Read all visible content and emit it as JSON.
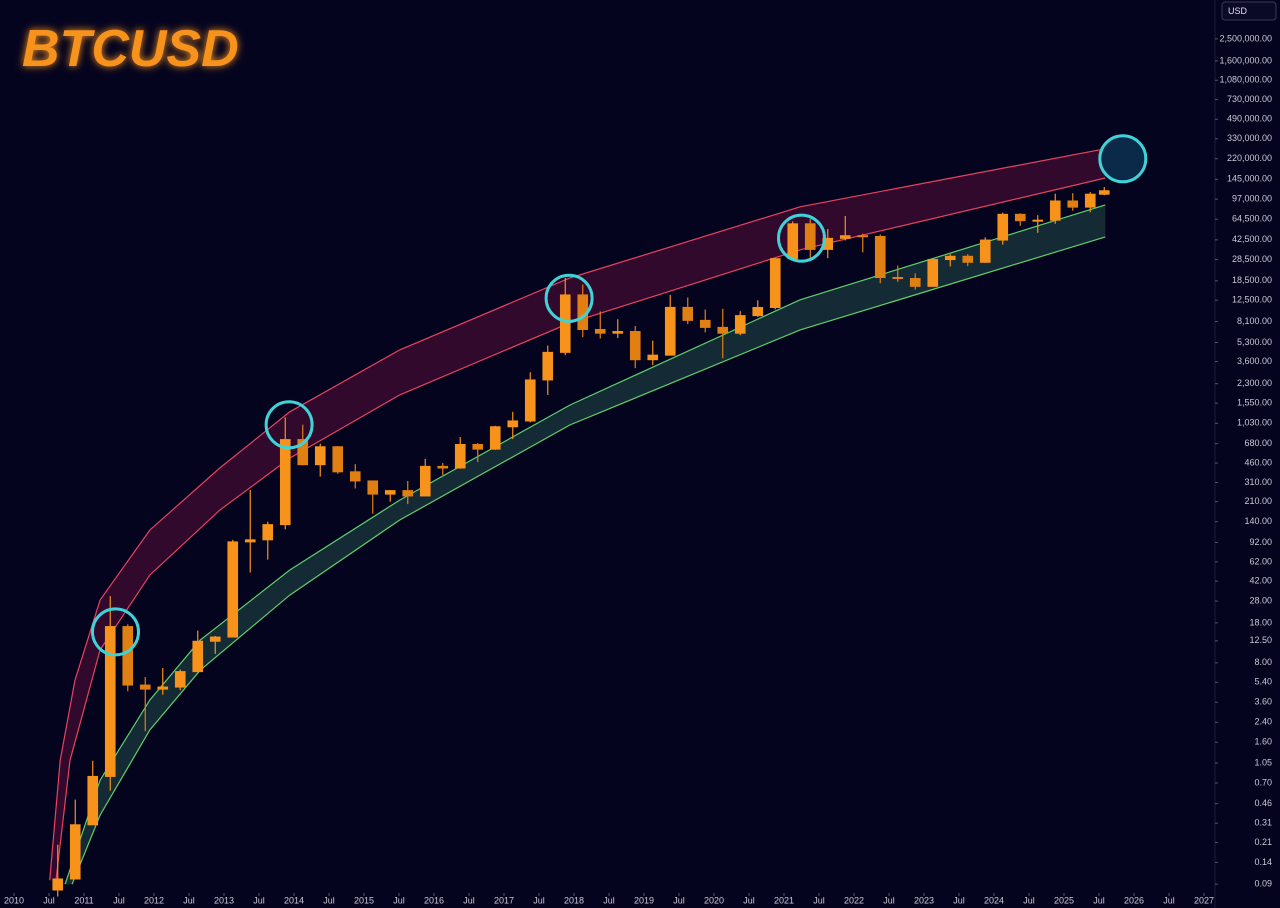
{
  "chart_data": {
    "type": "candlestick",
    "title": "BTCUSD",
    "currency": "USD",
    "log_scale": true,
    "up_color": "#f7931a",
    "down_color": "#e07f12",
    "xlim": [
      2009.8,
      2027.157
    ],
    "ylim": [
      0.068,
      5500000
    ],
    "xticks": [
      {
        "value": 2010,
        "label": "2010"
      },
      {
        "value": 2010.5,
        "label": "Jul"
      },
      {
        "value": 2011,
        "label": "2011"
      },
      {
        "value": 2011.5,
        "label": "Jul"
      },
      {
        "value": 2012,
        "label": "2012"
      },
      {
        "value": 2012.5,
        "label": "Jul"
      },
      {
        "value": 2013,
        "label": "2013"
      },
      {
        "value": 2013.5,
        "label": "Jul"
      },
      {
        "value": 2014,
        "label": "2014"
      },
      {
        "value": 2014.5,
        "label": "Jul"
      },
      {
        "value": 2015,
        "label": "2015"
      },
      {
        "value": 2015.5,
        "label": "Jul"
      },
      {
        "value": 2016,
        "label": "2016"
      },
      {
        "value": 2016.5,
        "label": "Jul"
      },
      {
        "value": 2017,
        "label": "2017"
      },
      {
        "value": 2017.5,
        "label": "Jul"
      },
      {
        "value": 2018,
        "label": "2018"
      },
      {
        "value": 2018.5,
        "label": "Jul"
      },
      {
        "value": 2019,
        "label": "2019"
      },
      {
        "value": 2019.5,
        "label": "Jul"
      },
      {
        "value": 2020,
        "label": "2020"
      },
      {
        "value": 2020.5,
        "label": "Jul"
      },
      {
        "value": 2021,
        "label": "2021"
      },
      {
        "value": 2021.5,
        "label": "Jul"
      },
      {
        "value": 2022,
        "label": "2022"
      },
      {
        "value": 2022.5,
        "label": "Jul"
      },
      {
        "value": 2023,
        "label": "2023"
      },
      {
        "value": 2023.5,
        "label": "Jul"
      },
      {
        "value": 2024,
        "label": "2024"
      },
      {
        "value": 2024.5,
        "label": "Jul"
      },
      {
        "value": 2025,
        "label": "2025"
      },
      {
        "value": 2025.5,
        "label": "Jul"
      },
      {
        "value": 2026,
        "label": "2026"
      },
      {
        "value": 2026.5,
        "label": "Jul"
      },
      {
        "value": 2027,
        "label": "2027"
      }
    ],
    "yticks": [
      {
        "value": 2500000,
        "label": "2,500,000.00"
      },
      {
        "value": 1600000,
        "label": "1,600,000.00"
      },
      {
        "value": 1080000,
        "label": "1,080,000.00"
      },
      {
        "value": 730000,
        "label": "730,000.00"
      },
      {
        "value": 490000,
        "label": "490,000.00"
      },
      {
        "value": 330000,
        "label": "330,000.00"
      },
      {
        "value": 220000,
        "label": "220,000.00"
      },
      {
        "value": 145000,
        "label": "145,000.00"
      },
      {
        "value": 97000,
        "label": "97,000.00"
      },
      {
        "value": 64500,
        "label": "64,500.00"
      },
      {
        "value": 42500,
        "label": "42,500.00"
      },
      {
        "value": 28500,
        "label": "28,500.00"
      },
      {
        "value": 18500,
        "label": "18,500.00"
      },
      {
        "value": 12500,
        "label": "12,500.00"
      },
      {
        "value": 8100,
        "label": "8,100.00"
      },
      {
        "value": 5300,
        "label": "5,300.00"
      },
      {
        "value": 3600,
        "label": "3,600.00"
      },
      {
        "value": 2300,
        "label": "2,300.00"
      },
      {
        "value": 1550,
        "label": "1,550.00"
      },
      {
        "value": 1030,
        "label": "1,030.00"
      },
      {
        "value": 680,
        "label": "680.00"
      },
      {
        "value": 460,
        "label": "460.00"
      },
      {
        "value": 310,
        "label": "310.00"
      },
      {
        "value": 210,
        "label": "210.00"
      },
      {
        "value": 140,
        "label": "140.00"
      },
      {
        "value": 92,
        "label": "92.00"
      },
      {
        "value": 62,
        "label": "62.00"
      },
      {
        "value": 42,
        "label": "42.00"
      },
      {
        "value": 28,
        "label": "28.00"
      },
      {
        "value": 18,
        "label": "18.00"
      },
      {
        "value": 12.5,
        "label": "12.50"
      },
      {
        "value": 8,
        "label": "8.00"
      },
      {
        "value": 5.4,
        "label": "5.40"
      },
      {
        "value": 3.6,
        "label": "3.60"
      },
      {
        "value": 2.4,
        "label": "2.40"
      },
      {
        "value": 1.6,
        "label": "1.60"
      },
      {
        "value": 1.05,
        "label": "1.05"
      },
      {
        "value": 0.7,
        "label": "0.70"
      },
      {
        "value": 0.46,
        "label": "0.46"
      },
      {
        "value": 0.31,
        "label": "0.31"
      },
      {
        "value": 0.21,
        "label": "0.21"
      },
      {
        "value": 0.14,
        "label": "0.14"
      },
      {
        "value": 0.09,
        "label": "0.09"
      }
    ],
    "x": [
      2010.625,
      2010.875,
      2011.125,
      2011.375,
      2011.625,
      2011.875,
      2012.125,
      2012.375,
      2012.625,
      2012.875,
      2013.125,
      2013.375,
      2013.625,
      2013.875,
      2014.125,
      2014.375,
      2014.625,
      2014.875,
      2015.125,
      2015.375,
      2015.625,
      2015.875,
      2016.125,
      2016.375,
      2016.625,
      2016.875,
      2017.125,
      2017.375,
      2017.625,
      2017.875,
      2018.125,
      2018.375,
      2018.625,
      2018.875,
      2019.125,
      2019.375,
      2019.625,
      2019.875,
      2020.125,
      2020.375,
      2020.625,
      2020.875,
      2021.125,
      2021.375,
      2021.625,
      2021.875,
      2022.125,
      2022.375,
      2022.625,
      2022.875,
      2023.125,
      2023.375,
      2023.625,
      2023.875,
      2024.125,
      2024.375,
      2024.625,
      2024.875,
      2025.125,
      2025.375,
      2025.575
    ],
    "open": [
      0.08,
      0.1,
      0.3,
      0.8,
      16.7,
      5.1,
      4.7,
      4.9,
      6.7,
      12.4,
      13.5,
      93,
      97,
      132,
      740,
      445,
      640,
      385,
      320,
      245,
      263,
      236,
      430,
      416,
      670,
      610,
      960,
      1080,
      2480,
      4340,
      13900,
      6900,
      6400,
      6620,
      3740,
      4100,
      10800,
      8300,
      7200,
      6400,
      9140,
      10780,
      28990,
      58800,
      35000,
      43800,
      46200,
      45500,
      19800,
      19400,
      16550,
      28500,
      30450,
      26970,
      42300,
      71300,
      62700,
      63300,
      93400,
      82500,
      107200
    ],
    "high": [
      0.2,
      0.5,
      1.1,
      31,
      17.5,
      6,
      7.2,
      7,
      15.4,
      13.8,
      97,
      266,
      140,
      1163,
      1000,
      680,
      650,
      450,
      320,
      265,
      320,
      500,
      460,
      780,
      690,
      980,
      1300,
      2900,
      4980,
      19700,
      17200,
      9950,
      8500,
      7400,
      5500,
      13900,
      13200,
      10350,
      10500,
      10000,
      12480,
      29300,
      61800,
      64900,
      52900,
      69000,
      48200,
      47400,
      25200,
      21500,
      29200,
      31800,
      31800,
      44700,
      73800,
      72800,
      70000,
      108300,
      109600,
      111900,
      124000
    ],
    "low": [
      0.07,
      0.1,
      0.3,
      0.6,
      4.5,
      2,
      4.2,
      4.6,
      6.6,
      9.6,
      13.4,
      50,
      65,
      120,
      440,
      350,
      370,
      275,
      165,
      210,
      200,
      235,
      360,
      410,
      470,
      600,
      750,
      1050,
      1830,
      4100,
      5900,
      5750,
      5800,
      3150,
      3350,
      4100,
      7700,
      6500,
      3850,
      6150,
      8900,
      10370,
      28100,
      28800,
      29300,
      42000,
      33000,
      17600,
      18150,
      15500,
      16500,
      24800,
      24900,
      26600,
      38500,
      56500,
      49000,
      58900,
      76600,
      74400,
      105200
    ],
    "close": [
      0.1,
      0.3,
      0.8,
      16.7,
      5.1,
      4.7,
      4.9,
      6.7,
      12.4,
      13.5,
      93,
      97,
      132,
      740,
      445,
      640,
      385,
      320,
      245,
      263,
      236,
      430,
      416,
      670,
      610,
      960,
      1080,
      2480,
      4340,
      13900,
      6900,
      6400,
      6620,
      3740,
      4100,
      10800,
      8300,
      7200,
      6400,
      9140,
      10780,
      28990,
      58800,
      35000,
      43800,
      46200,
      45500,
      19800,
      19400,
      16550,
      28500,
      30450,
      26970,
      42300,
      71300,
      62700,
      63300,
      93400,
      82500,
      107200,
      115000
    ],
    "bands": [
      {
        "color": "#e8435e",
        "fill": "#3a0b30",
        "edges": [
          {
            "x": [
              2010.51,
              2010.66,
              2010.87,
              2011.23,
              2011.94,
              2012.94,
              2013.94,
              2015.51,
              2017.94,
              2021.23,
              2025.51
            ],
            "values": [
              0.0975,
              1.11,
              5.6,
              28.6,
              118,
              416,
              1300,
              4560,
              19600,
              83000,
              264000
            ]
          },
          {
            "x": [
              2010.6,
              2010.8,
              2011.23,
              2011.94,
              2012.94,
              2013.94,
              2015.51,
              2017.94,
              2021.23,
              2025.59
            ],
            "values": [
              0.0975,
              1.11,
              10.4,
              47.4,
              177,
              509,
              1830,
              7890,
              34700,
              149000
            ]
          }
        ]
      },
      {
        "color": "#5fcf6a",
        "fill": "#17333a",
        "edges": [
          {
            "x": [
              2010.73,
              2011.23,
              2011.94,
              2012.66,
              2013.94,
              2015.51,
              2017.94,
              2021.23,
              2025.59
            ],
            "values": [
              0.09,
              0.741,
              3.76,
              12.7,
              52.6,
              217,
              1490,
              12600,
              86300
            ]
          },
          {
            "x": [
              2010.83,
              2011.23,
              2011.94,
              2012.66,
              2013.94,
              2015.51,
              2017.94,
              2021.23,
              2025.59
            ],
            "values": [
              0.09,
              0.365,
              2.05,
              6.9,
              31.6,
              145,
              995,
              6840,
              45100
            ]
          }
        ]
      }
    ],
    "highlights": {
      "color": "#3fd3d8",
      "fill": "#0b2a4a",
      "x": [
        2011.45,
        2013.93,
        2017.93,
        2021.25,
        2025.84
      ],
      "values": [
        15,
        1000,
        13000,
        44000,
        220000
      ],
      "filled": [
        false,
        false,
        false,
        false,
        true
      ]
    }
  }
}
